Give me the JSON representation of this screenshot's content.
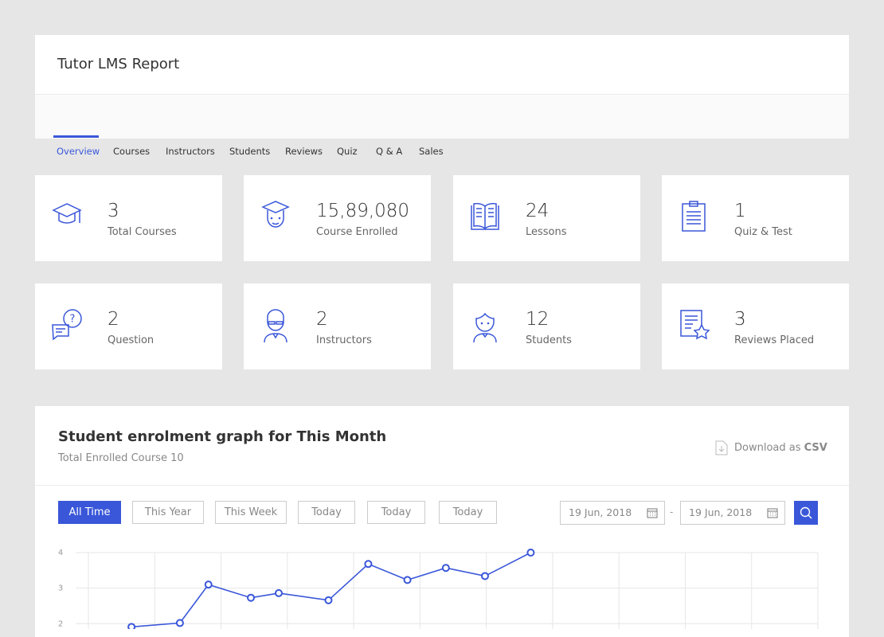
{
  "header": {
    "title": "Tutor LMS Report",
    "tabs": [
      "Overview",
      "Courses",
      "Instructors",
      "Students",
      "Reviews",
      "Quiz",
      "Q & A",
      "Sales"
    ]
  },
  "stats": [
    {
      "value": "3",
      "label": "Total Courses"
    },
    {
      "value": "15,89,080",
      "label": "Course Enrolled"
    },
    {
      "value": "24",
      "label": "Lessons"
    },
    {
      "value": "1",
      "label": "Quiz & Test"
    },
    {
      "value": "2",
      "label": "Question"
    },
    {
      "value": "2",
      "label": "Instructors"
    },
    {
      "value": "12",
      "label": "Students"
    },
    {
      "value": "3",
      "label": "Reviews Placed"
    }
  ],
  "chart_section": {
    "title": "Student enrolment graph for This Month",
    "subtitle": "Total Enrolled Course 10",
    "download": {
      "text": "Download as",
      "format": "CSV"
    },
    "filters": [
      "All Time",
      "This Year",
      "This Week",
      "Today",
      "Today",
      "Today"
    ],
    "date_from": "19 Jun, 2018",
    "date_separator": "-",
    "date_to": "19 Jun, 2018"
  },
  "chart_data": {
    "type": "line",
    "x": [
      0.65,
      1.38,
      1.81,
      2.45,
      2.87,
      3.62,
      4.22,
      4.81,
      5.39,
      5.98,
      6.67
    ],
    "values": [
      1.91,
      2.02,
      3.1,
      2.73,
      2.86,
      2.66,
      3.68,
      3.23,
      3.57,
      3.34,
      4.0
    ],
    "color": "#3a57d9",
    "xlim": [
      0,
      11
    ],
    "xticks": [
      0,
      1,
      2,
      3,
      4,
      5,
      6,
      7,
      8,
      9,
      10,
      11
    ],
    "ylim": [
      1.85,
      4
    ],
    "yticks": [
      2,
      3,
      4
    ],
    "grid": true
  }
}
